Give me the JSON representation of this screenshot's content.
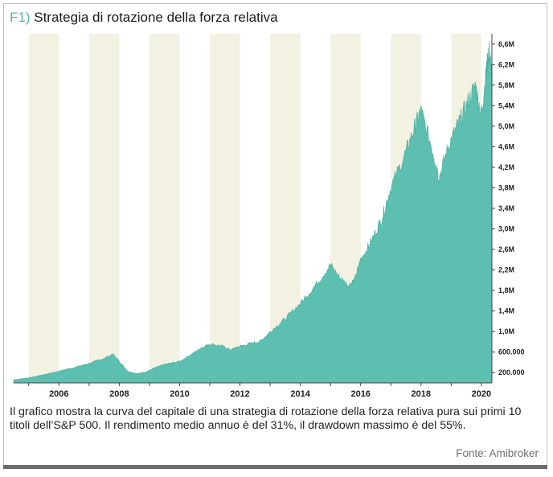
{
  "figure": {
    "number": "F1)",
    "title": "Strategia di rotazione della forza relativa",
    "caption": "Il grafico mostra la curva del capitale di una strategia di rotazione della forza relativa pura sui primi 10 titoli dell’S&P 500. Il rendimento medio annuo è del 31%, il drawdown massimo è del 55%.",
    "source": "Fonte: Amibroker"
  },
  "chart_data": {
    "type": "area",
    "title": "Strategia di rotazione della forza relativa",
    "xlabel": "",
    "ylabel": "",
    "x_tick_labels": [
      "2006",
      "2008",
      "2010",
      "2012",
      "2014",
      "2016",
      "2018",
      "2020"
    ],
    "y_tick_labels": [
      "6,6M",
      "6,2M",
      "5,8M",
      "5,4M",
      "5,0M",
      "4,6M",
      "4,2M",
      "3,8M",
      "3,4M",
      "3,0M",
      "2,6M",
      "2,2M",
      "1,8M",
      "1,4M",
      "1,0M",
      "600.000",
      "200.000"
    ],
    "ylim": [
      0,
      6800000
    ],
    "xlim": [
      2004.5,
      2020.35
    ],
    "grid": false,
    "alternating_year_bands": true,
    "colors": {
      "area": "#5cbfb0",
      "band": "#f3f1e2",
      "grid_bg": "#ffffff"
    },
    "series": [
      {
        "x": [
          2004.5,
          2005.0,
          2005.5,
          2006.0,
          2006.5,
          2007.0,
          2007.5,
          2007.8,
          2008.0,
          2008.3,
          2008.6,
          2008.9,
          2009.2,
          2009.5,
          2010.0,
          2010.4,
          2010.7,
          2011.0,
          2011.4,
          2011.7,
          2011.9,
          2012.3,
          2012.7,
          2013.0,
          2013.5,
          2014.0,
          2014.5,
          2015.0,
          2015.3,
          2015.6,
          2015.8,
          2016.0,
          2016.3,
          2016.7,
          2017.0,
          2017.5,
          2017.8,
          2018.0,
          2018.4,
          2018.6,
          2018.9,
          2019.2,
          2019.5,
          2019.8,
          2020.0,
          2020.15,
          2020.25,
          2020.35
        ],
        "y": [
          60000,
          100000,
          160000,
          230000,
          300000,
          380000,
          480000,
          560000,
          420000,
          220000,
          180000,
          220000,
          300000,
          360000,
          420000,
          560000,
          680000,
          760000,
          720000,
          640000,
          700000,
          760000,
          820000,
          1000000,
          1250000,
          1550000,
          1900000,
          2300000,
          2050000,
          1900000,
          2000000,
          2400000,
          2700000,
          3200000,
          3800000,
          4500000,
          5000000,
          5300000,
          4500000,
          4000000,
          4600000,
          5000000,
          5400000,
          5800000,
          5200000,
          6000000,
          6500000,
          6000000
        ]
      }
    ]
  }
}
